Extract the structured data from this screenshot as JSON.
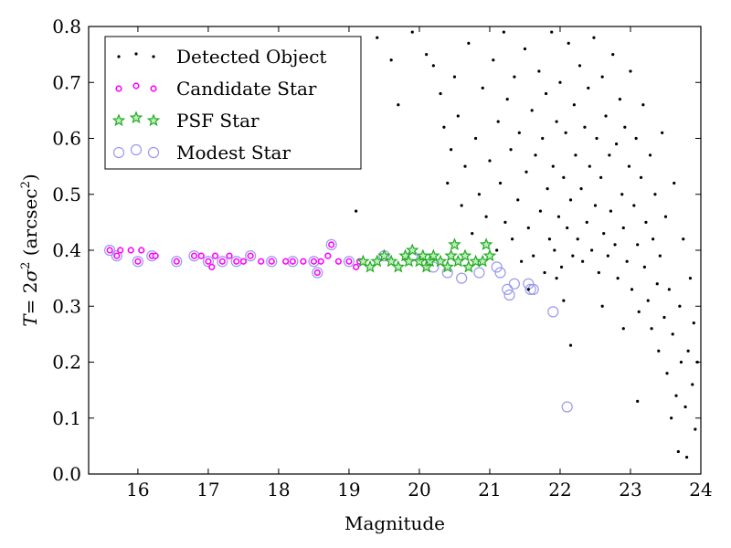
{
  "chart_data": {
    "type": "scatter",
    "xlabel": "Magnitude",
    "ylabel": {
      "prefix": "T",
      "eq": "= 2",
      "sigma": "σ",
      "sup1": "2",
      "paren_open": " (arcsec",
      "sup2": "2",
      "paren_close": ")"
    },
    "xlim": [
      15.3,
      24.0
    ],
    "ylim": [
      0.0,
      0.8
    ],
    "xticks": [
      "16",
      "17",
      "18",
      "19",
      "20",
      "21",
      "22",
      "23",
      "24"
    ],
    "yticks": [
      "0.0",
      "0.1",
      "0.2",
      "0.3",
      "0.4",
      "0.5",
      "0.6",
      "0.7",
      "0.8"
    ],
    "legend_placement": "top-left",
    "series": [
      {
        "name": "Detected Object",
        "marker": "dot",
        "color": "#000000",
        "points": [
          [
            19.1,
            0.47
          ],
          [
            19.4,
            0.78
          ],
          [
            19.6,
            0.74
          ],
          [
            19.7,
            0.66
          ],
          [
            19.9,
            0.79
          ],
          [
            20.1,
            0.75
          ],
          [
            20.2,
            0.73
          ],
          [
            20.3,
            0.68
          ],
          [
            20.35,
            0.62
          ],
          [
            20.4,
            0.52
          ],
          [
            20.45,
            0.58
          ],
          [
            20.5,
            0.71
          ],
          [
            20.55,
            0.64
          ],
          [
            20.6,
            0.48
          ],
          [
            20.65,
            0.55
          ],
          [
            20.7,
            0.77
          ],
          [
            20.75,
            0.43
          ],
          [
            20.8,
            0.6
          ],
          [
            20.85,
            0.5
          ],
          [
            20.9,
            0.69
          ],
          [
            20.95,
            0.46
          ],
          [
            21.0,
            0.56
          ],
          [
            21.05,
            0.74
          ],
          [
            21.1,
            0.4
          ],
          [
            21.12,
            0.63
          ],
          [
            21.15,
            0.52
          ],
          [
            21.2,
            0.79
          ],
          [
            21.22,
            0.45
          ],
          [
            21.25,
            0.67
          ],
          [
            21.3,
            0.58
          ],
          [
            21.32,
            0.42
          ],
          [
            21.35,
            0.71
          ],
          [
            21.4,
            0.49
          ],
          [
            21.42,
            0.61
          ],
          [
            21.45,
            0.38
          ],
          [
            21.5,
            0.76
          ],
          [
            21.52,
            0.54
          ],
          [
            21.55,
            0.44
          ],
          [
            21.6,
            0.65
          ],
          [
            21.62,
            0.39
          ],
          [
            21.65,
            0.57
          ],
          [
            21.7,
            0.72
          ],
          [
            21.72,
            0.47
          ],
          [
            21.75,
            0.6
          ],
          [
            21.78,
            0.36
          ],
          [
            21.8,
            0.68
          ],
          [
            21.82,
            0.51
          ],
          [
            21.85,
            0.42
          ],
          [
            21.88,
            0.79
          ],
          [
            21.9,
            0.55
          ],
          [
            21.92,
            0.4
          ],
          [
            21.95,
            0.63
          ],
          [
            21.98,
            0.46
          ],
          [
            22.0,
            0.7
          ],
          [
            22.02,
            0.37
          ],
          [
            22.05,
            0.53
          ],
          [
            22.08,
            0.61
          ],
          [
            22.1,
            0.44
          ],
          [
            22.12,
            0.77
          ],
          [
            22.15,
            0.49
          ],
          [
            22.18,
            0.39
          ],
          [
            22.2,
            0.66
          ],
          [
            22.22,
            0.57
          ],
          [
            22.25,
            0.42
          ],
          [
            22.28,
            0.73
          ],
          [
            22.3,
            0.51
          ],
          [
            22.32,
            0.38
          ],
          [
            22.35,
            0.62
          ],
          [
            22.38,
            0.45
          ],
          [
            22.4,
            0.69
          ],
          [
            22.42,
            0.55
          ],
          [
            22.45,
            0.4
          ],
          [
            22.48,
            0.78
          ],
          [
            22.5,
            0.48
          ],
          [
            22.52,
            0.6
          ],
          [
            22.55,
            0.36
          ],
          [
            22.58,
            0.53
          ],
          [
            22.6,
            0.71
          ],
          [
            22.62,
            0.43
          ],
          [
            22.65,
            0.64
          ],
          [
            22.68,
            0.39
          ],
          [
            22.7,
            0.57
          ],
          [
            22.72,
            0.47
          ],
          [
            22.75,
            0.75
          ],
          [
            22.78,
            0.41
          ],
          [
            22.8,
            0.59
          ],
          [
            22.82,
            0.35
          ],
          [
            22.85,
            0.67
          ],
          [
            22.88,
            0.5
          ],
          [
            22.9,
            0.44
          ],
          [
            22.92,
            0.62
          ],
          [
            22.95,
            0.38
          ],
          [
            22.98,
            0.55
          ],
          [
            23.0,
            0.72
          ],
          [
            23.02,
            0.33
          ],
          [
            23.05,
            0.48
          ],
          [
            23.08,
            0.6
          ],
          [
            23.1,
            0.41
          ],
          [
            23.12,
            0.29
          ],
          [
            23.15,
            0.53
          ],
          [
            23.18,
            0.66
          ],
          [
            23.2,
            0.37
          ],
          [
            23.22,
            0.45
          ],
          [
            23.25,
            0.31
          ],
          [
            23.28,
            0.57
          ],
          [
            23.3,
            0.26
          ],
          [
            23.32,
            0.42
          ],
          [
            23.35,
            0.5
          ],
          [
            23.38,
            0.34
          ],
          [
            23.4,
            0.22
          ],
          [
            23.42,
            0.39
          ],
          [
            23.45,
            0.61
          ],
          [
            23.48,
            0.28
          ],
          [
            23.5,
            0.46
          ],
          [
            23.52,
            0.18
          ],
          [
            23.55,
            0.33
          ],
          [
            23.58,
            0.1
          ],
          [
            23.6,
            0.25
          ],
          [
            23.62,
            0.52
          ],
          [
            23.65,
            0.14
          ],
          [
            23.68,
            0.04
          ],
          [
            23.7,
            0.3
          ],
          [
            23.72,
            0.2
          ],
          [
            23.75,
            0.42
          ],
          [
            23.78,
            0.12
          ],
          [
            23.8,
            0.03
          ],
          [
            23.82,
            0.22
          ],
          [
            23.85,
            0.35
          ],
          [
            23.88,
            0.16
          ],
          [
            23.9,
            0.27
          ],
          [
            23.92,
            0.08
          ],
          [
            23.95,
            0.2
          ],
          [
            22.15,
            0.23
          ],
          [
            22.05,
            0.31
          ],
          [
            23.1,
            0.13
          ],
          [
            21.55,
            0.33
          ],
          [
            21.95,
            0.35
          ],
          [
            22.6,
            0.3
          ],
          [
            22.9,
            0.26
          ]
        ]
      },
      {
        "name": "Candidate Star",
        "marker": "small-circle",
        "color": "#ff00ff",
        "points": [
          [
            15.6,
            0.4
          ],
          [
            15.7,
            0.39
          ],
          [
            15.75,
            0.4
          ],
          [
            15.9,
            0.4
          ],
          [
            16.0,
            0.38
          ],
          [
            16.05,
            0.4
          ],
          [
            16.2,
            0.39
          ],
          [
            16.25,
            0.39
          ],
          [
            16.55,
            0.38
          ],
          [
            16.8,
            0.39
          ],
          [
            16.9,
            0.39
          ],
          [
            17.0,
            0.38
          ],
          [
            17.05,
            0.37
          ],
          [
            17.1,
            0.39
          ],
          [
            17.2,
            0.38
          ],
          [
            17.3,
            0.39
          ],
          [
            17.4,
            0.38
          ],
          [
            17.5,
            0.38
          ],
          [
            17.6,
            0.39
          ],
          [
            17.75,
            0.38
          ],
          [
            17.9,
            0.38
          ],
          [
            18.1,
            0.38
          ],
          [
            18.2,
            0.38
          ],
          [
            18.35,
            0.38
          ],
          [
            18.5,
            0.38
          ],
          [
            18.55,
            0.36
          ],
          [
            18.6,
            0.38
          ],
          [
            18.7,
            0.39
          ],
          [
            18.75,
            0.41
          ],
          [
            18.85,
            0.38
          ],
          [
            19.0,
            0.38
          ],
          [
            19.1,
            0.37
          ],
          [
            19.15,
            0.38
          ]
        ]
      },
      {
        "name": "PSF Star",
        "marker": "star",
        "color": "#22aa22",
        "points": [
          [
            19.2,
            0.38
          ],
          [
            19.3,
            0.37
          ],
          [
            19.4,
            0.38
          ],
          [
            19.5,
            0.39
          ],
          [
            19.6,
            0.38
          ],
          [
            19.7,
            0.37
          ],
          [
            19.8,
            0.39
          ],
          [
            19.85,
            0.38
          ],
          [
            19.9,
            0.4
          ],
          [
            20.0,
            0.38
          ],
          [
            20.05,
            0.39
          ],
          [
            20.1,
            0.37
          ],
          [
            20.15,
            0.38
          ],
          [
            20.2,
            0.39
          ],
          [
            20.3,
            0.38
          ],
          [
            20.4,
            0.37
          ],
          [
            20.45,
            0.39
          ],
          [
            20.5,
            0.41
          ],
          [
            20.55,
            0.38
          ],
          [
            20.65,
            0.39
          ],
          [
            20.7,
            0.37
          ],
          [
            20.8,
            0.38
          ],
          [
            20.9,
            0.38
          ],
          [
            20.95,
            0.41
          ],
          [
            21.0,
            0.39
          ]
        ]
      },
      {
        "name": "Modest Star",
        "marker": "open-circle",
        "color": "#9999ee",
        "points": [
          [
            15.6,
            0.4
          ],
          [
            15.7,
            0.39
          ],
          [
            16.0,
            0.38
          ],
          [
            16.2,
            0.39
          ],
          [
            16.55,
            0.38
          ],
          [
            16.8,
            0.39
          ],
          [
            17.0,
            0.38
          ],
          [
            17.2,
            0.38
          ],
          [
            17.4,
            0.38
          ],
          [
            17.6,
            0.39
          ],
          [
            17.9,
            0.38
          ],
          [
            18.2,
            0.38
          ],
          [
            18.5,
            0.38
          ],
          [
            18.55,
            0.36
          ],
          [
            18.75,
            0.41
          ],
          [
            19.0,
            0.38
          ],
          [
            19.5,
            0.39
          ],
          [
            19.9,
            0.39
          ],
          [
            20.2,
            0.37
          ],
          [
            20.4,
            0.36
          ],
          [
            20.6,
            0.35
          ],
          [
            20.85,
            0.36
          ],
          [
            21.1,
            0.37
          ],
          [
            21.15,
            0.36
          ],
          [
            21.25,
            0.33
          ],
          [
            21.28,
            0.32
          ],
          [
            21.35,
            0.34
          ],
          [
            21.55,
            0.34
          ],
          [
            21.58,
            0.33
          ],
          [
            21.62,
            0.33
          ],
          [
            21.9,
            0.29
          ],
          [
            22.1,
            0.12
          ]
        ]
      }
    ]
  }
}
